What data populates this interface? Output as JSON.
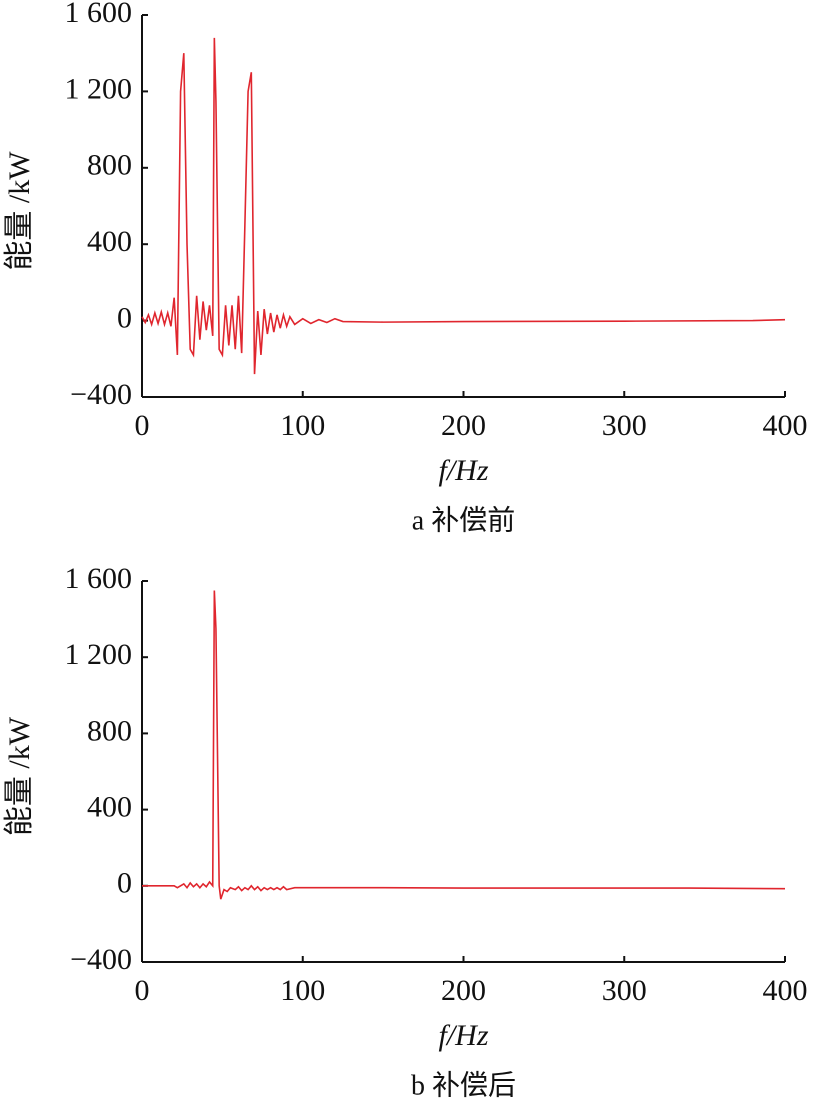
{
  "chart_data": [
    {
      "type": "line",
      "caption": "a 补偿前",
      "x_label": "f/Hz",
      "y_label": "能量 /kW",
      "x": [
        0,
        2,
        4,
        6,
        8,
        10,
        12,
        14,
        16,
        18,
        20,
        22,
        24,
        26,
        28,
        30,
        32,
        34,
        36,
        38,
        40,
        42,
        44,
        45,
        46,
        48,
        50,
        52,
        54,
        56,
        58,
        60,
        62,
        64,
        66,
        68,
        70,
        72,
        74,
        76,
        78,
        80,
        82,
        84,
        86,
        88,
        90,
        92,
        95,
        100,
        105,
        110,
        115,
        120,
        125,
        150,
        200,
        300,
        380,
        400
      ],
      "series": [
        {
          "color": "#e0262e",
          "values": [
            20,
            -10,
            30,
            -20,
            40,
            -15,
            45,
            -20,
            40,
            -30,
            120,
            -180,
            1200,
            1400,
            400,
            -150,
            -180,
            130,
            -100,
            100,
            -50,
            80,
            -80,
            1480,
            1150,
            -150,
            -180,
            80,
            -130,
            80,
            -150,
            130,
            -170,
            500,
            1200,
            1300,
            -280,
            50,
            -180,
            60,
            -70,
            40,
            -60,
            30,
            -40,
            30,
            -30,
            20,
            -20,
            10,
            -15,
            5,
            -10,
            10,
            -5,
            -8,
            -5,
            -3,
            0,
            5
          ]
        }
      ],
      "xlim": [
        0,
        400
      ],
      "ylim": [
        -400,
        1600
      ],
      "xticks": [
        0,
        100,
        200,
        300,
        400
      ],
      "yticks": [
        {
          "value": -400,
          "label": "−400"
        },
        0,
        400,
        800,
        {
          "value": 1200,
          "label": "1 200"
        },
        {
          "value": 1600,
          "label": "1 600"
        }
      ]
    },
    {
      "type": "line",
      "caption": "b 补偿后",
      "x_label": "f/Hz",
      "y_label": "能量 /kW",
      "x": [
        0,
        20,
        22,
        26,
        28,
        30,
        32,
        34,
        36,
        38,
        40,
        42,
        44,
        45,
        46,
        48,
        49,
        51,
        53,
        55,
        58,
        60,
        62,
        64,
        66,
        68,
        70,
        72,
        74,
        76,
        78,
        80,
        82,
        84,
        86,
        88,
        90,
        95,
        150,
        200,
        340,
        400
      ],
      "series": [
        {
          "color": "#e0262e",
          "values": [
            0,
            0,
            -10,
            10,
            -10,
            15,
            -5,
            10,
            -10,
            10,
            -5,
            20,
            0,
            1550,
            1350,
            0,
            -70,
            -20,
            -30,
            -10,
            -20,
            -5,
            -25,
            -10,
            -20,
            0,
            -20,
            -5,
            -25,
            -10,
            -20,
            -10,
            -20,
            -10,
            -20,
            -5,
            -20,
            -10,
            -10,
            -12,
            -12,
            -15
          ]
        }
      ],
      "xlim": [
        0,
        400
      ],
      "ylim": [
        -400,
        1600
      ],
      "xticks": [
        0,
        100,
        200,
        300,
        400
      ],
      "yticks": [
        {
          "value": -400,
          "label": "−400"
        },
        0,
        400,
        800,
        {
          "value": 1200,
          "label": "1 200"
        },
        {
          "value": 1600,
          "label": "1 600"
        }
      ]
    }
  ]
}
